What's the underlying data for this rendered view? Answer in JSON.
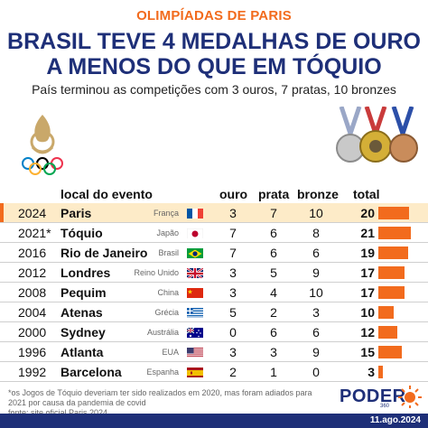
{
  "header": {
    "kicker": "OLIMPÍADAS DE PARIS",
    "title_line1": "BRASIL TEVE 4 MEDALHAS DE OURO",
    "title_line2": "A MENOS DO QUE EM TÓQUIO",
    "subtitle": "País terminou as competições com 3 ouros, 7 pratas, 10 bronzes"
  },
  "icons": {
    "logo": "paris-2024-logo-icon",
    "medals": "olympic-medals-icon"
  },
  "colors": {
    "accent": "#f26b1d",
    "navy": "#1e2f78",
    "highlight": "#fdebc8"
  },
  "table": {
    "headers": {
      "local": "local do evento",
      "ouro": "ouro",
      "prata": "prata",
      "bronze": "bronze",
      "total": "total"
    },
    "rows": [
      {
        "year": "2024",
        "city": "Paris",
        "country": "França",
        "flag": "france",
        "ouro": 3,
        "prata": 7,
        "bronze": 10,
        "total": 20,
        "highlight": true
      },
      {
        "year": "2021*",
        "city": "Tóquio",
        "country": "Japão",
        "flag": "japan",
        "ouro": 7,
        "prata": 6,
        "bronze": 8,
        "total": 21,
        "highlight": false
      },
      {
        "year": "2016",
        "city": "Rio de Janeiro",
        "country": "Brasil",
        "flag": "brazil",
        "ouro": 7,
        "prata": 6,
        "bronze": 6,
        "total": 19,
        "highlight": false
      },
      {
        "year": "2012",
        "city": "Londres",
        "country": "Reino Unido",
        "flag": "uk",
        "ouro": 3,
        "prata": 5,
        "bronze": 9,
        "total": 17,
        "highlight": false
      },
      {
        "year": "2008",
        "city": "Pequim",
        "country": "China",
        "flag": "china",
        "ouro": 3,
        "prata": 4,
        "bronze": 10,
        "total": 17,
        "highlight": false
      },
      {
        "year": "2004",
        "city": "Atenas",
        "country": "Grécia",
        "flag": "greece",
        "ouro": 5,
        "prata": 2,
        "bronze": 3,
        "total": 10,
        "highlight": false
      },
      {
        "year": "2000",
        "city": "Sydney",
        "country": "Austrália",
        "flag": "australia",
        "ouro": 0,
        "prata": 6,
        "bronze": 6,
        "total": 12,
        "highlight": false
      },
      {
        "year": "1996",
        "city": "Atlanta",
        "country": "EUA",
        "flag": "usa",
        "ouro": 3,
        "prata": 3,
        "bronze": 9,
        "total": 15,
        "highlight": false
      },
      {
        "year": "1992",
        "city": "Barcelona",
        "country": "Espanha",
        "flag": "spain",
        "ouro": 2,
        "prata": 1,
        "bronze": 0,
        "total": 3,
        "highlight": false
      }
    ]
  },
  "footer": {
    "note": "*os Jogos de Tóquio deveriam ter sido realizados em 2020, mas foram adiados para 2021 por causa da pandemia de covid",
    "source": "fonte: site oficial Paris 2024",
    "brand": "PODER",
    "brand_sub": "360",
    "date": "11.ago.2024"
  }
}
